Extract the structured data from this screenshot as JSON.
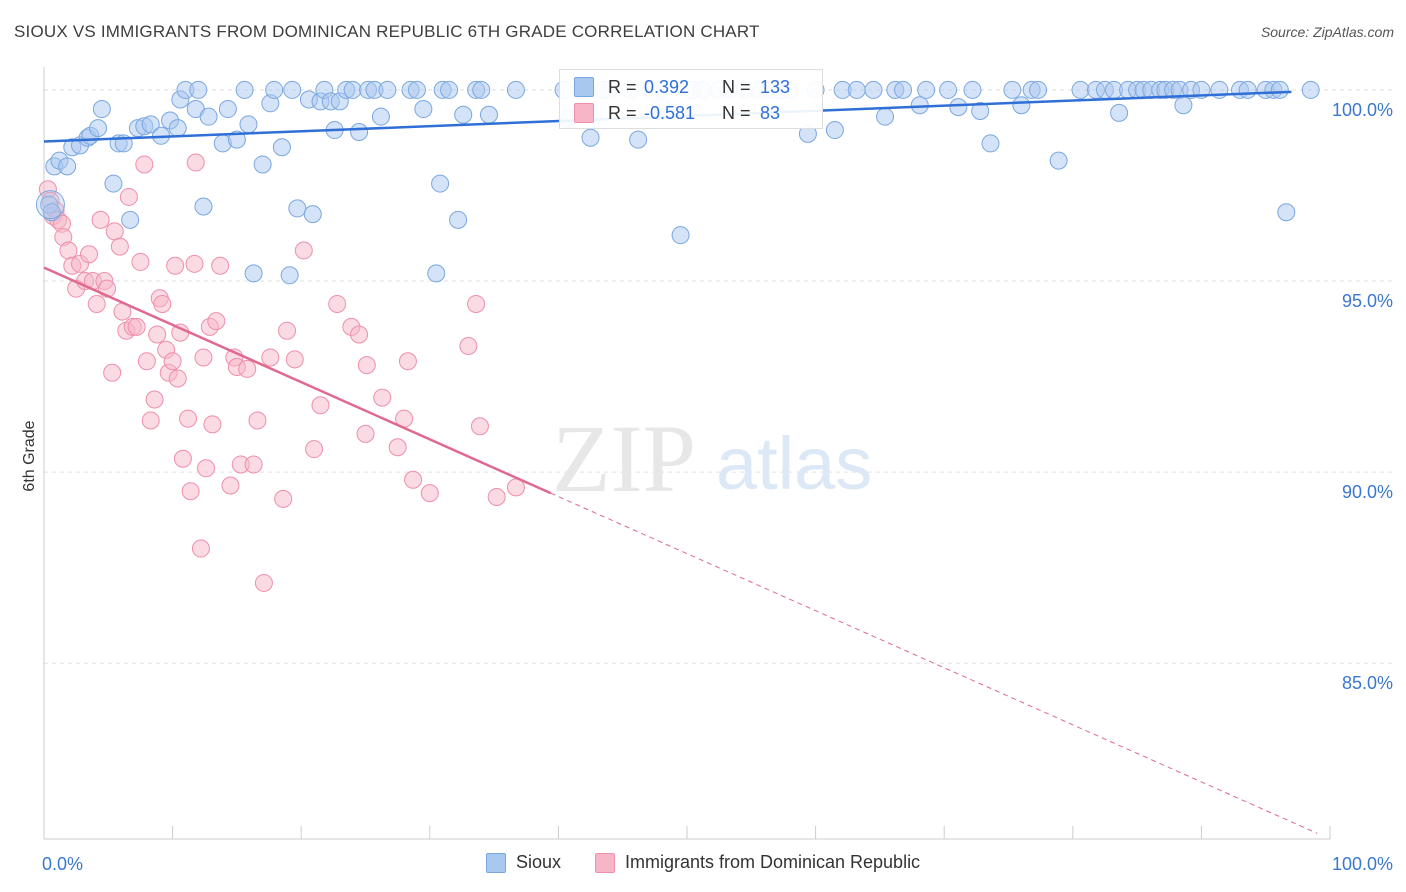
{
  "title": "SIOUX VS IMMIGRANTS FROM DOMINICAN REPUBLIC 6TH GRADE CORRELATION CHART",
  "source": "Source: ZipAtlas.com",
  "watermark": {
    "zip": "ZIP",
    "atlas": "atlas"
  },
  "colors": {
    "blue_fill": "#a9c8f0",
    "blue_stroke": "#7aa7e0",
    "blue_line": "#2f6fd6",
    "pink_fill": "#f6b6c8",
    "pink_stroke": "#ef8fab",
    "pink_line": "#e0698f",
    "axis_text": "#3a78d0",
    "grid": "#e2e2e2"
  },
  "legend_top": [
    {
      "r_label": "R =",
      "r_value": "0.392",
      "n_label": "N =",
      "n_value": "133",
      "color": "#a9c8f0"
    },
    {
      "r_label": "R =",
      "r_value": "-0.581",
      "n_label": "N =",
      "n_value": "83",
      "color": "#f6b6c8"
    }
  ],
  "legend_bottom": [
    {
      "label": "Sioux",
      "color": "#a9c8f0"
    },
    {
      "label": "Immigrants from Dominican Republic",
      "color": "#f6b6c8"
    }
  ],
  "chart_data": {
    "type": "scatter",
    "title": "SIOUX VS IMMIGRANTS FROM DOMINICAN REPUBLIC 6TH GRADE CORRELATION CHART",
    "xlabel": "",
    "ylabel": "6th Grade",
    "xlim": [
      0,
      100
    ],
    "ylim": [
      80.4,
      100.6
    ],
    "x_tick_labels": [
      "0.0%",
      "100.0%"
    ],
    "y_ticks": [
      {
        "value": 100,
        "label": "100.0%"
      },
      {
        "value": 95,
        "label": "95.0%"
      },
      {
        "value": 90,
        "label": "90.0%"
      },
      {
        "value": 85,
        "label": "85.0%"
      }
    ],
    "grid": true,
    "legend_position": "top-center",
    "series": [
      {
        "name": "Sioux",
        "r": 0.392,
        "n": 133,
        "trend": {
          "x0": 0,
          "y0": 98.65,
          "x1": 97,
          "y1": 99.95
        },
        "points": [
          [
            0.4,
            97.0
          ],
          [
            0.6,
            96.8
          ],
          [
            0.8,
            98.0
          ],
          [
            1.2,
            98.15
          ],
          [
            1.8,
            98.0
          ],
          [
            2.2,
            98.5
          ],
          [
            2.8,
            98.55
          ],
          [
            3.4,
            98.75
          ],
          [
            3.6,
            98.8
          ],
          [
            4.2,
            99.0
          ],
          [
            4.5,
            99.5
          ],
          [
            5.4,
            97.55
          ],
          [
            5.8,
            98.6
          ],
          [
            6.2,
            98.6
          ],
          [
            6.7,
            96.6
          ],
          [
            7.3,
            99.0
          ],
          [
            7.8,
            99.05
          ],
          [
            8.3,
            99.1
          ],
          [
            9.1,
            98.8
          ],
          [
            9.8,
            99.2
          ],
          [
            10.4,
            99.0
          ],
          [
            10.6,
            99.75
          ],
          [
            11.0,
            100.0
          ],
          [
            11.8,
            99.5
          ],
          [
            12.0,
            100.0
          ],
          [
            12.4,
            96.95
          ],
          [
            12.8,
            99.3
          ],
          [
            13.9,
            98.6
          ],
          [
            14.3,
            99.5
          ],
          [
            15.0,
            98.7
          ],
          [
            15.6,
            100.0
          ],
          [
            15.9,
            99.1
          ],
          [
            16.3,
            95.2
          ],
          [
            17.0,
            98.05
          ],
          [
            17.6,
            99.65
          ],
          [
            17.9,
            100.0
          ],
          [
            18.5,
            98.5
          ],
          [
            19.3,
            100.0
          ],
          [
            19.1,
            95.15
          ],
          [
            19.7,
            96.9
          ],
          [
            20.6,
            99.75
          ],
          [
            20.9,
            96.75
          ],
          [
            21.5,
            99.7
          ],
          [
            21.8,
            100.0
          ],
          [
            22.3,
            99.7
          ],
          [
            22.6,
            98.95
          ],
          [
            23.0,
            99.7
          ],
          [
            23.5,
            100.0
          ],
          [
            24.0,
            100.0
          ],
          [
            24.5,
            98.9
          ],
          [
            25.2,
            100.0
          ],
          [
            25.7,
            100.0
          ],
          [
            26.2,
            99.3
          ],
          [
            26.7,
            100.0
          ],
          [
            28.5,
            100.0
          ],
          [
            29.0,
            100.0
          ],
          [
            29.5,
            99.5
          ],
          [
            30.5,
            95.2
          ],
          [
            31.0,
            100.0
          ],
          [
            31.5,
            100.0
          ],
          [
            30.8,
            97.55
          ],
          [
            32.2,
            96.6
          ],
          [
            32.6,
            99.35
          ],
          [
            33.6,
            100.0
          ],
          [
            34.0,
            100.0
          ],
          [
            34.6,
            99.35
          ],
          [
            36.7,
            100.0
          ],
          [
            40.4,
            100.0
          ],
          [
            40.8,
            99.25
          ],
          [
            41.7,
            100.0
          ],
          [
            42.1,
            100.0
          ],
          [
            42.5,
            98.75
          ],
          [
            43.5,
            100.0
          ],
          [
            44.0,
            100.0
          ],
          [
            45.6,
            100.0
          ],
          [
            46.2,
            98.7
          ],
          [
            47.2,
            100.0
          ],
          [
            48.0,
            99.6
          ],
          [
            49.5,
            96.2
          ],
          [
            50.4,
            100.0
          ],
          [
            51.2,
            100.0
          ],
          [
            52.5,
            100.0
          ],
          [
            53.2,
            100.0
          ],
          [
            54.5,
            100.0
          ],
          [
            55.6,
            100.0
          ],
          [
            56.5,
            100.0
          ],
          [
            57.3,
            100.0
          ],
          [
            58.0,
            100.0
          ],
          [
            59.4,
            98.85
          ],
          [
            60.0,
            100.0
          ],
          [
            61.5,
            98.95
          ],
          [
            62.1,
            100.0
          ],
          [
            63.2,
            100.0
          ],
          [
            64.5,
            100.0
          ],
          [
            65.4,
            99.3
          ],
          [
            66.2,
            100.0
          ],
          [
            66.8,
            100.0
          ],
          [
            68.1,
            99.6
          ],
          [
            68.6,
            100.0
          ],
          [
            70.3,
            100.0
          ],
          [
            71.1,
            99.55
          ],
          [
            72.2,
            100.0
          ],
          [
            72.8,
            99.45
          ],
          [
            73.6,
            98.6
          ],
          [
            75.3,
            100.0
          ],
          [
            76.0,
            99.6
          ],
          [
            76.8,
            100.0
          ],
          [
            77.3,
            100.0
          ],
          [
            78.9,
            98.15
          ],
          [
            80.6,
            100.0
          ],
          [
            81.8,
            100.0
          ],
          [
            82.5,
            100.0
          ],
          [
            83.2,
            100.0
          ],
          [
            83.6,
            99.4
          ],
          [
            84.3,
            100.0
          ],
          [
            85.0,
            100.0
          ],
          [
            85.5,
            100.0
          ],
          [
            86.1,
            100.0
          ],
          [
            86.8,
            100.0
          ],
          [
            87.2,
            100.0
          ],
          [
            87.8,
            100.0
          ],
          [
            88.3,
            100.0
          ],
          [
            88.6,
            99.6
          ],
          [
            89.2,
            100.0
          ],
          [
            90.0,
            100.0
          ],
          [
            91.4,
            100.0
          ],
          [
            93.0,
            100.0
          ],
          [
            93.6,
            100.0
          ],
          [
            95.0,
            100.0
          ],
          [
            95.6,
            100.0
          ],
          [
            96.1,
            100.0
          ],
          [
            96.6,
            96.8
          ],
          [
            98.5,
            100.0
          ]
        ]
      },
      {
        "name": "Immigrants from Dominican Republic",
        "r": -0.581,
        "n": 83,
        "trend": {
          "x0": 0,
          "y0": 95.35,
          "x1": 39.4,
          "y1": 89.45
        },
        "trend_dashed": {
          "x0": 39.4,
          "y0": 89.45,
          "x1": 99,
          "y1": 80.55
        },
        "points": [
          [
            0.3,
            97.4
          ],
          [
            0.5,
            97.1
          ],
          [
            0.7,
            96.7
          ],
          [
            0.9,
            96.85
          ],
          [
            1.1,
            96.6
          ],
          [
            1.4,
            96.5
          ],
          [
            1.5,
            96.15
          ],
          [
            1.9,
            95.8
          ],
          [
            2.2,
            95.4
          ],
          [
            2.5,
            94.8
          ],
          [
            2.8,
            95.45
          ],
          [
            3.2,
            95.0
          ],
          [
            3.5,
            95.7
          ],
          [
            3.8,
            95.0
          ],
          [
            4.1,
            94.4
          ],
          [
            4.4,
            96.6
          ],
          [
            4.7,
            95.0
          ],
          [
            4.9,
            94.8
          ],
          [
            5.3,
            92.6
          ],
          [
            5.5,
            96.3
          ],
          [
            5.9,
            95.9
          ],
          [
            6.1,
            94.2
          ],
          [
            6.4,
            93.7
          ],
          [
            6.6,
            97.2
          ],
          [
            6.9,
            93.8
          ],
          [
            7.2,
            93.8
          ],
          [
            7.5,
            95.5
          ],
          [
            7.8,
            98.05
          ],
          [
            8.0,
            92.9
          ],
          [
            8.3,
            91.35
          ],
          [
            8.6,
            91.9
          ],
          [
            8.8,
            93.6
          ],
          [
            9.0,
            94.55
          ],
          [
            9.2,
            94.4
          ],
          [
            9.5,
            93.2
          ],
          [
            9.7,
            92.6
          ],
          [
            10.0,
            92.9
          ],
          [
            10.2,
            95.4
          ],
          [
            10.4,
            92.45
          ],
          [
            10.6,
            93.65
          ],
          [
            10.8,
            90.35
          ],
          [
            11.2,
            91.4
          ],
          [
            11.4,
            89.5
          ],
          [
            11.7,
            95.45
          ],
          [
            11.8,
            98.1
          ],
          [
            12.2,
            88.0
          ],
          [
            12.4,
            93.0
          ],
          [
            12.6,
            90.1
          ],
          [
            12.9,
            93.8
          ],
          [
            13.1,
            91.25
          ],
          [
            13.4,
            93.95
          ],
          [
            13.7,
            95.4
          ],
          [
            14.5,
            89.65
          ],
          [
            14.8,
            93.0
          ],
          [
            15.0,
            92.75
          ],
          [
            15.3,
            90.2
          ],
          [
            15.8,
            92.7
          ],
          [
            16.3,
            90.2
          ],
          [
            16.6,
            91.35
          ],
          [
            17.1,
            87.1
          ],
          [
            17.6,
            93.0
          ],
          [
            18.6,
            89.3
          ],
          [
            18.9,
            93.7
          ],
          [
            19.5,
            92.95
          ],
          [
            20.2,
            95.8
          ],
          [
            21.0,
            90.6
          ],
          [
            21.5,
            91.75
          ],
          [
            22.8,
            94.4
          ],
          [
            23.9,
            93.8
          ],
          [
            24.5,
            93.6
          ],
          [
            25.1,
            92.8
          ],
          [
            25.0,
            91.0
          ],
          [
            26.3,
            91.95
          ],
          [
            27.5,
            90.65
          ],
          [
            28.0,
            91.4
          ],
          [
            28.3,
            92.9
          ],
          [
            28.7,
            89.8
          ],
          [
            30.0,
            89.45
          ],
          [
            33.0,
            93.3
          ],
          [
            33.6,
            94.4
          ],
          [
            33.9,
            91.2
          ],
          [
            35.2,
            89.35
          ],
          [
            36.7,
            89.6
          ]
        ]
      }
    ]
  }
}
